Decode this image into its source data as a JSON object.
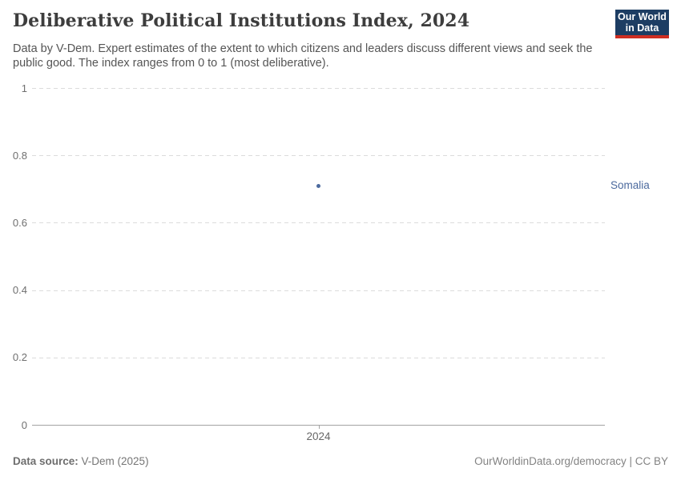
{
  "header": {
    "title": "Deliberative Political Institutions Index, 2024",
    "subtitle": "Data by V-Dem. Expert estimates of the extent to which citizens and leaders discuss different views and seek the public good. The index ranges from 0 to 1 (most deliberative).",
    "logo": {
      "line1": "Our World",
      "line2": "in Data",
      "bg_color": "#1d3d63",
      "accent_color": "#cf2e22"
    }
  },
  "chart_data": {
    "type": "scatter",
    "title": "Deliberative Political Institutions Index, 2024",
    "x": [
      2024
    ],
    "xtick_labels": [
      "2024"
    ],
    "series": [
      {
        "name": "Somalia",
        "values": [
          0.71
        ],
        "color": "#4c6a9e"
      }
    ],
    "xlabel": "",
    "ylabel": "",
    "ylim": [
      0,
      1
    ],
    "yticks": [
      0,
      0.2,
      0.4,
      0.6,
      0.8,
      1
    ],
    "ytick_labels": [
      "0",
      "0.2",
      "0.4",
      "0.6",
      "0.8",
      "1"
    ],
    "grid": "horizontal-dashed",
    "legend_position": "right-of-point"
  },
  "footer": {
    "data_source_label": "Data source:",
    "data_source_value": " V-Dem (2025)",
    "attribution": "OurWorldinData.org/democracy | CC BY"
  }
}
